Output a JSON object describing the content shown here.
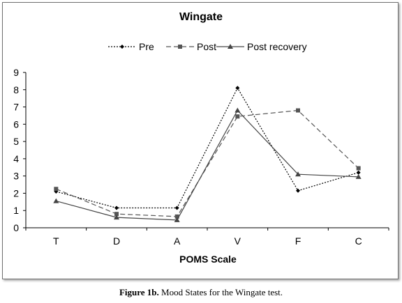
{
  "caption": {
    "label": "Figure 1b.",
    "text": " Mood States for the Wingate test."
  },
  "chart_data": {
    "type": "line",
    "title": "Wingate",
    "xlabel": "POMS Scale",
    "ylabel": "",
    "categories": [
      "T",
      "D",
      "A",
      "V",
      "F",
      "C"
    ],
    "ylim": [
      0,
      9
    ],
    "yticks": [
      0,
      1,
      2,
      3,
      4,
      5,
      6,
      7,
      8,
      9
    ],
    "grid": false,
    "legend_position": "top",
    "series": [
      {
        "name": "Pre",
        "values": [
          2.1,
          1.15,
          1.15,
          8.1,
          2.15,
          3.2
        ],
        "line_style": "dotted",
        "marker": "diamond",
        "color": "#000000"
      },
      {
        "name": "Post",
        "values": [
          2.25,
          0.8,
          0.65,
          6.45,
          6.8,
          3.45
        ],
        "line_style": "dashed",
        "marker": "square",
        "color": "#555555"
      },
      {
        "name": "Post recovery",
        "values": [
          1.55,
          0.6,
          0.45,
          6.8,
          3.1,
          2.95
        ],
        "line_style": "solid",
        "marker": "triangle",
        "color": "#444444"
      }
    ]
  }
}
